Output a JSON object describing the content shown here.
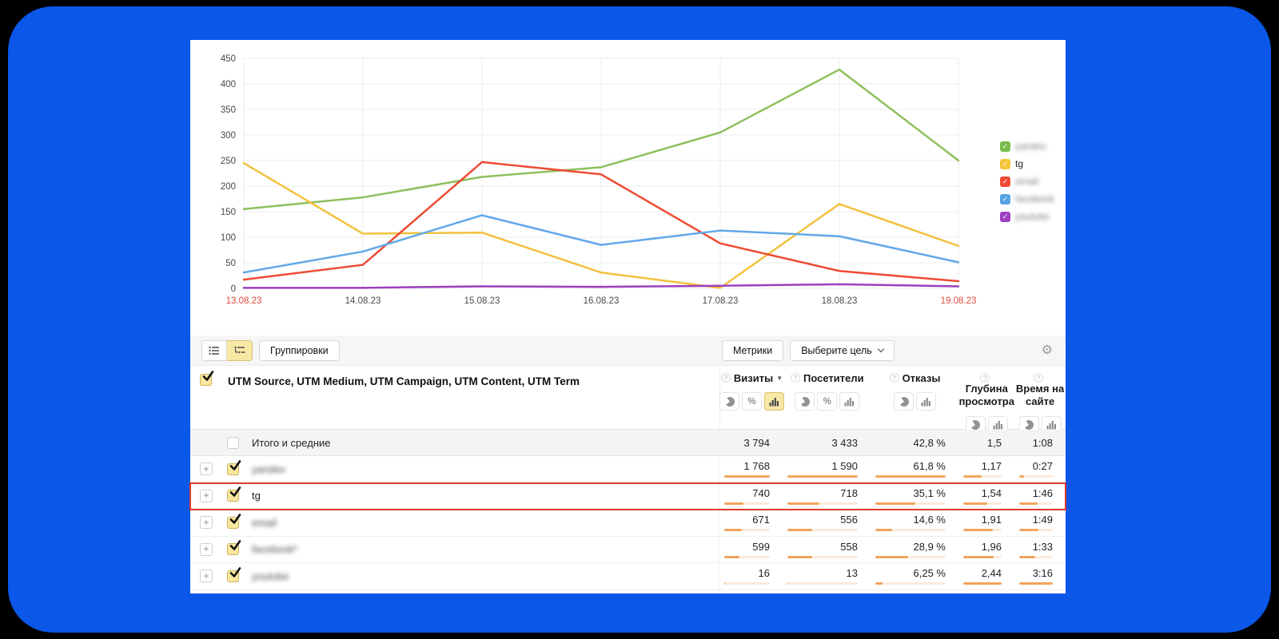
{
  "chart_data": {
    "type": "line",
    "x": [
      "13.08.23",
      "14.08.23",
      "15.08.23",
      "16.08.23",
      "17.08.23",
      "18.08.23",
      "19.08.23"
    ],
    "series": [
      {
        "name": "yandex",
        "color": "#8fc05c",
        "values": [
          155,
          178,
          218,
          237,
          305,
          428,
          250
        ]
      },
      {
        "name": "tg",
        "color": "#f2c13d",
        "values": [
          245,
          107,
          109,
          31,
          1,
          165,
          83
        ]
      },
      {
        "name": "email",
        "color": "#ee4b33",
        "values": [
          17,
          46,
          247,
          223,
          88,
          34,
          14
        ]
      },
      {
        "name": "facebook",
        "color": "#61a8e8",
        "values": [
          31,
          72,
          143,
          85,
          113,
          102,
          51
        ]
      },
      {
        "name": "youtube",
        "color": "#9d3fbd",
        "values": [
          1,
          1,
          4,
          3,
          5,
          8,
          4
        ]
      }
    ],
    "ylim": [
      0,
      450
    ],
    "ytick_step": 50,
    "grid": true,
    "legend_position": "right",
    "x_label_color_default": "#4a4a4a",
    "x_label_color_ends": "#dd4b3e",
    "legend": [
      {
        "label": "yandex",
        "color": "#78bb4c",
        "blurred": true
      },
      {
        "label": "tg",
        "color": "#f5c538",
        "blurred": false
      },
      {
        "label": "email",
        "color": "#f04a35",
        "blurred": true
      },
      {
        "label": "facebook",
        "color": "#56a4e3",
        "blurred": true
      },
      {
        "label": "youtube",
        "color": "#9c3fc0",
        "blurred": true
      }
    ]
  },
  "toolbar": {
    "groupings_label": "Группировки",
    "metrics_label": "Метрики",
    "goal_label": "Выберите цель"
  },
  "table": {
    "dimensions_label": "UTM Source, UTM Medium, UTM Campaign, UTM Content, UTM Term",
    "columns": [
      {
        "label": "Визиты",
        "sorted_desc": true,
        "toggles": [
          "pie",
          "percent",
          "bar"
        ],
        "active": "bar"
      },
      {
        "label": "Посетители",
        "sorted_desc": false,
        "toggles": [
          "pie",
          "percent",
          "bar"
        ],
        "active": null
      },
      {
        "label": "Отказы",
        "sorted_desc": false,
        "toggles": [
          "pie",
          "bar"
        ],
        "active": null
      },
      {
        "label": "Глубина просмотра",
        "sorted_desc": false,
        "toggles": [
          "pie",
          "bar"
        ],
        "active": null
      },
      {
        "label": "Время на сайте",
        "sorted_desc": false,
        "toggles": [
          "pie",
          "bar"
        ],
        "active": null
      }
    ],
    "totals_row": {
      "label": "Итого и средние",
      "checked": false,
      "values": [
        "3 794",
        "3 433",
        "42,8 %",
        "1,5",
        "1:08"
      ]
    },
    "rows": [
      {
        "name": "yandex",
        "blurred": true,
        "highlighted": false,
        "values": [
          "1 768",
          "1 590",
          "61,8 %",
          "1,17",
          "0:27"
        ],
        "bars": [
          1,
          1,
          1,
          0.48,
          0.14
        ]
      },
      {
        "name": "tg",
        "blurred": false,
        "highlighted": true,
        "values": [
          "740",
          "718",
          "35,1 %",
          "1,54",
          "1:46"
        ],
        "bars": [
          0.42,
          0.45,
          0.57,
          0.63,
          0.54
        ]
      },
      {
        "name": "email",
        "blurred": true,
        "highlighted": false,
        "values": [
          "671",
          "556",
          "14,6 %",
          "1,91",
          "1:49"
        ],
        "bars": [
          0.38,
          0.35,
          0.24,
          0.78,
          0.56
        ]
      },
      {
        "name": "facebook*",
        "blurred": true,
        "highlighted": false,
        "values": [
          "599",
          "558",
          "28,9 %",
          "1,96",
          "1:33"
        ],
        "bars": [
          0.34,
          0.35,
          0.47,
          0.8,
          0.47
        ]
      },
      {
        "name": "youtube",
        "blurred": true,
        "highlighted": false,
        "values": [
          "16",
          "13",
          "6,25 %",
          "2,44",
          "3:16"
        ],
        "bars": [
          0.01,
          0.01,
          0.1,
          1,
          1
        ]
      }
    ],
    "highlight_color": "#df392b"
  },
  "colors": {
    "background": "#0a57e8",
    "panel": "#ffffff",
    "accent_yellow": "#f8e8a6",
    "bar_fill": "#f2a45c",
    "bar_track": "#fceadb"
  }
}
